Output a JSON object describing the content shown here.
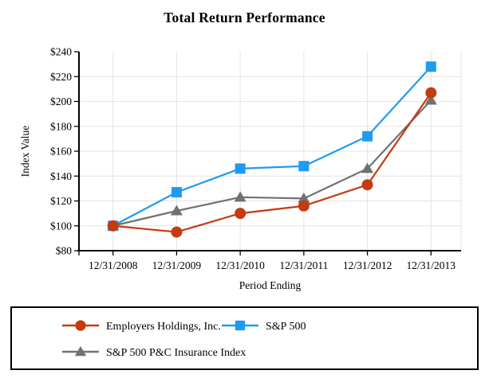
{
  "title": "Total Return Performance",
  "chart_data": {
    "type": "line",
    "title": "Total Return Performance",
    "xlabel": "Period Ending",
    "ylabel": "Index Value",
    "categories": [
      "12/31/2008",
      "12/31/2009",
      "12/31/2010",
      "12/31/2011",
      "12/31/2012",
      "12/31/2013"
    ],
    "ylim": [
      80,
      240
    ],
    "y_tick_step": 20,
    "y_tick_labels": [
      "$80",
      "$100",
      "$120",
      "$140",
      "$160",
      "$180",
      "$200",
      "$220",
      "$240"
    ],
    "grid": true,
    "legend_position": "bottom",
    "series": [
      {
        "name": "Employers Holdings, Inc.",
        "marker": "circle",
        "color": "#C43B10",
        "values": [
          100,
          95,
          110,
          116,
          133,
          207
        ]
      },
      {
        "name": "S&P 500",
        "marker": "square",
        "color": "#1E9BF0",
        "values": [
          100,
          127,
          146,
          148,
          172,
          228
        ]
      },
      {
        "name": "S&P 500 P&C Insurance Index",
        "marker": "triangle",
        "color": "#717171",
        "values": [
          100,
          112,
          123,
          122,
          146,
          201
        ]
      }
    ],
    "colors": {
      "gridline": "#E3E3E3",
      "axis": "#000000",
      "text": "#000000"
    }
  }
}
